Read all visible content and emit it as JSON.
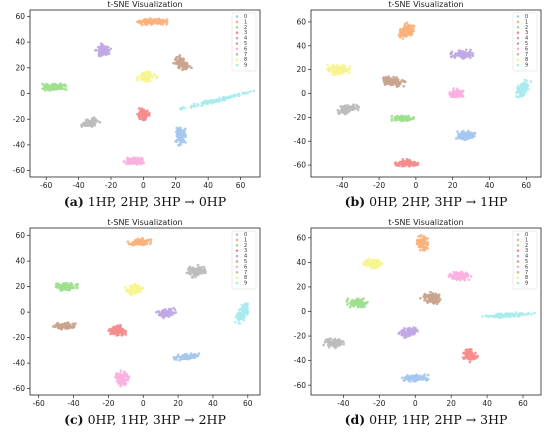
{
  "legend_classes": [
    "0",
    "1",
    "2",
    "3",
    "4",
    "5",
    "6",
    "7",
    "8",
    "9"
  ],
  "colors": [
    "#a5c6ef",
    "#fbb17a",
    "#9ee08f",
    "#f58d8d",
    "#c1a8e6",
    "#c9a48e",
    "#fbb0e0",
    "#bcbcbc",
    "#f6f58f",
    "#a9ebee"
  ],
  "chart_data": [
    {
      "type": "scatter",
      "title": "t-SNE Visualization",
      "caption_tag": "(a)",
      "caption_text": "1HP, 2HP, 3HP → 0HP",
      "xlim": [
        -70,
        72
      ],
      "ylim": [
        -65,
        65
      ],
      "xticks": [
        -60,
        -40,
        -20,
        0,
        20,
        40,
        60
      ],
      "yticks": [
        -60,
        -40,
        -20,
        0,
        20,
        40,
        60
      ],
      "xlabel": "",
      "ylabel": "",
      "legend_position": "top-right",
      "clusters": [
        {
          "label": "0",
          "x": 23,
          "y": -33,
          "sx": 2.5,
          "sy": 6,
          "rot": 0
        },
        {
          "label": "1",
          "x": 5,
          "y": 56,
          "sx": 8,
          "sy": 2.2,
          "rot": 0
        },
        {
          "label": "2",
          "x": -55,
          "y": 5,
          "sx": 6,
          "sy": 2.2,
          "rot": 0
        },
        {
          "label": "3",
          "x": 0,
          "y": -16,
          "sx": 3,
          "sy": 4,
          "rot": 0
        },
        {
          "label": "4",
          "x": -25,
          "y": 33,
          "sx": 3.5,
          "sy": 3.5,
          "rot": -35
        },
        {
          "label": "5",
          "x": 24,
          "y": 23,
          "sx": 3,
          "sy": 5,
          "rot": 40
        },
        {
          "label": "6",
          "x": -6,
          "y": -53,
          "sx": 5,
          "sy": 2.4,
          "rot": 0
        },
        {
          "label": "7",
          "x": -33,
          "y": -23,
          "sx": 5,
          "sy": 2.5,
          "rot": 20
        },
        {
          "label": "8",
          "x": 2,
          "y": 13,
          "sx": 5,
          "sy": 3,
          "rot": 15
        },
        {
          "label": "9",
          "x": 46,
          "y": -5,
          "sx": 20,
          "sy": 1.2,
          "rot": 17
        }
      ]
    },
    {
      "type": "scatter",
      "title": "t-SNE Visualization",
      "caption_tag": "(b)",
      "caption_text": "0HP, 2HP, 3HP → 1HP",
      "xlim": [
        -57,
        68
      ],
      "ylim": [
        -70,
        70
      ],
      "xticks": [
        -40,
        -20,
        0,
        20,
        40,
        60
      ],
      "yticks": [
        -60,
        -40,
        -20,
        0,
        20,
        40,
        60
      ],
      "xlabel": "",
      "ylabel": "",
      "legend_position": "top-right",
      "clusters": [
        {
          "label": "0",
          "x": 27,
          "y": -35,
          "sx": 4.5,
          "sy": 3,
          "rot": 10
        },
        {
          "label": "1",
          "x": -5,
          "y": 52,
          "sx": 3.5,
          "sy": 5,
          "rot": -35
        },
        {
          "label": "2",
          "x": -7,
          "y": -21,
          "sx": 5,
          "sy": 2,
          "rot": 0
        },
        {
          "label": "3",
          "x": -5,
          "y": -58,
          "sx": 5,
          "sy": 2.5,
          "rot": 0
        },
        {
          "label": "4",
          "x": 25,
          "y": 33,
          "sx": 5,
          "sy": 3,
          "rot": 0
        },
        {
          "label": "5",
          "x": -12,
          "y": 10,
          "sx": 5,
          "sy": 3,
          "rot": -10
        },
        {
          "label": "6",
          "x": 22,
          "y": 0,
          "sx": 3,
          "sy": 3.5,
          "rot": 0
        },
        {
          "label": "7",
          "x": -37,
          "y": -13,
          "sx": 5,
          "sy": 3,
          "rot": 25
        },
        {
          "label": "8",
          "x": -42,
          "y": 20,
          "sx": 5,
          "sy": 3.5,
          "rot": 0
        },
        {
          "label": "9",
          "x": 58,
          "y": 4,
          "sx": 2.5,
          "sy": 6,
          "rot": -20
        }
      ]
    },
    {
      "type": "scatter",
      "title": "t-SNE Visualization",
      "caption_tag": "(c)",
      "caption_text": "0HP, 1HP, 3HP → 2HP",
      "xlim": [
        -65,
        67
      ],
      "ylim": [
        -65,
        66
      ],
      "xticks": [
        -60,
        -40,
        -20,
        0,
        20,
        40,
        60
      ],
      "yticks": [
        -60,
        -40,
        -20,
        0,
        20,
        40,
        60
      ],
      "xlabel": "",
      "ylabel": "",
      "legend_position": "top-right",
      "clusters": [
        {
          "label": "0",
          "x": 25,
          "y": -35,
          "sx": 6,
          "sy": 2,
          "rot": 10
        },
        {
          "label": "1",
          "x": -2,
          "y": 55,
          "sx": 5.5,
          "sy": 2.2,
          "rot": 10
        },
        {
          "label": "2",
          "x": -44,
          "y": 20,
          "sx": 5,
          "sy": 2.8,
          "rot": -5
        },
        {
          "label": "3",
          "x": -15,
          "y": -14,
          "sx": 4,
          "sy": 3.5,
          "rot": 0
        },
        {
          "label": "4",
          "x": 13,
          "y": -1,
          "sx": 5,
          "sy": 2.5,
          "rot": 15
        },
        {
          "label": "5",
          "x": -45,
          "y": -11,
          "sx": 5.5,
          "sy": 2.2,
          "rot": 5
        },
        {
          "label": "6",
          "x": -12,
          "y": -52,
          "sx": 3.2,
          "sy": 5,
          "rot": 0
        },
        {
          "label": "7",
          "x": 30,
          "y": 32,
          "sx": 4.5,
          "sy": 3.5,
          "rot": 15
        },
        {
          "label": "8",
          "x": -5,
          "y": 18,
          "sx": 4,
          "sy": 3,
          "rot": 15
        },
        {
          "label": "9",
          "x": 57,
          "y": -1,
          "sx": 2.2,
          "sy": 6.5,
          "rot": -20
        }
      ]
    },
    {
      "type": "scatter",
      "title": "t-SNE Visualization",
      "caption_tag": "(d)",
      "caption_text": "0HP, 1HP, 2HP → 3HP",
      "xlim": [
        -58,
        70
      ],
      "ylim": [
        -68,
        68
      ],
      "xticks": [
        -40,
        -20,
        0,
        20,
        40,
        60
      ],
      "yticks": [
        -60,
        -40,
        -20,
        0,
        20,
        40,
        60
      ],
      "xlabel": "",
      "ylabel": "",
      "legend_position": "top-right",
      "clusters": [
        {
          "label": "0",
          "x": 0,
          "y": -54,
          "sx": 6,
          "sy": 2.5,
          "rot": 0
        },
        {
          "label": "1",
          "x": 4,
          "y": 56,
          "sx": 2.5,
          "sy": 5,
          "rot": 0
        },
        {
          "label": "2",
          "x": -32,
          "y": 7,
          "sx": 5,
          "sy": 2.8,
          "rot": 0
        },
        {
          "label": "3",
          "x": 30,
          "y": -35,
          "sx": 3.5,
          "sy": 4.5,
          "rot": 30
        },
        {
          "label": "4",
          "x": -4,
          "y": -17,
          "sx": 4.5,
          "sy": 3,
          "rot": 15
        },
        {
          "label": "5",
          "x": 9,
          "y": 11,
          "sx": 4.5,
          "sy": 3.5,
          "rot": -25
        },
        {
          "label": "6",
          "x": 25,
          "y": 29,
          "sx": 5,
          "sy": 3,
          "rot": -10
        },
        {
          "label": "7",
          "x": -45,
          "y": -26,
          "sx": 5,
          "sy": 3,
          "rot": -10
        },
        {
          "label": "8",
          "x": -23,
          "y": 39,
          "sx": 5,
          "sy": 3,
          "rot": -15
        },
        {
          "label": "9",
          "x": 52,
          "y": -3,
          "sx": 12,
          "sy": 1.4,
          "rot": 5
        }
      ]
    }
  ]
}
